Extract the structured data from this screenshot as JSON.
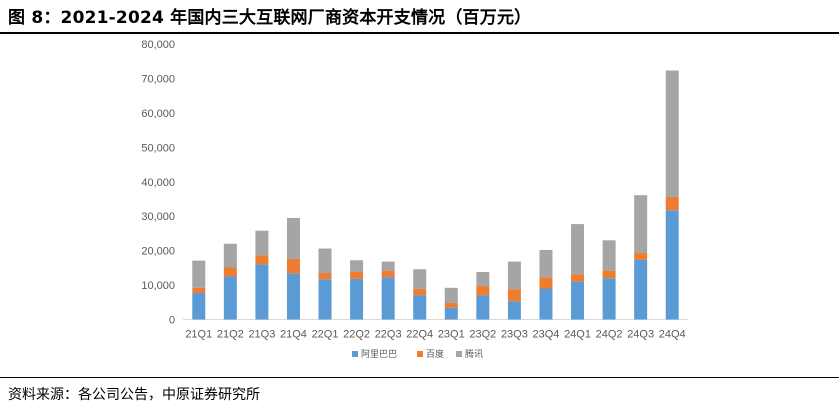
{
  "figure": {
    "title": "图 8：2021-2024 年国内三大互联网厂商资本开支情况（百万元）",
    "source": "资料来源：各公司公告，中原证券研究所"
  },
  "chart_data": {
    "type": "bar",
    "stacked": true,
    "categories": [
      "21Q1",
      "21Q2",
      "21Q3",
      "21Q4",
      "22Q1",
      "22Q2",
      "22Q3",
      "22Q4",
      "23Q1",
      "23Q2",
      "23Q3",
      "23Q4",
      "24Q1",
      "24Q2",
      "24Q3",
      "24Q4"
    ],
    "series": [
      {
        "name": "阿里巴巴",
        "color": "#5B9BD5",
        "values": [
          7700,
          12500,
          16000,
          13400,
          11700,
          11800,
          12300,
          7000,
          3400,
          7000,
          5300,
          9000,
          11000,
          12000,
          17300,
          31700
        ]
      },
      {
        "name": "百度",
        "color": "#ED7D31",
        "values": [
          1500,
          2600,
          2600,
          4200,
          1800,
          2100,
          1900,
          1900,
          1400,
          2700,
          3500,
          3300,
          2100,
          2200,
          2000,
          3900
        ]
      },
      {
        "name": "腾讯",
        "color": "#A5A5A5",
        "values": [
          7900,
          6900,
          7200,
          11900,
          7100,
          3300,
          2600,
          5700,
          4400,
          4100,
          8000,
          7900,
          14600,
          8800,
          16800,
          36700
        ]
      }
    ],
    "y_ticks": [
      "0",
      "10,000",
      "20,000",
      "30,000",
      "40,000",
      "50,000",
      "60,000",
      "70,000",
      "80,000"
    ],
    "ylim": [
      0,
      80000
    ],
    "grid": false,
    "legend_position": "bottom"
  }
}
